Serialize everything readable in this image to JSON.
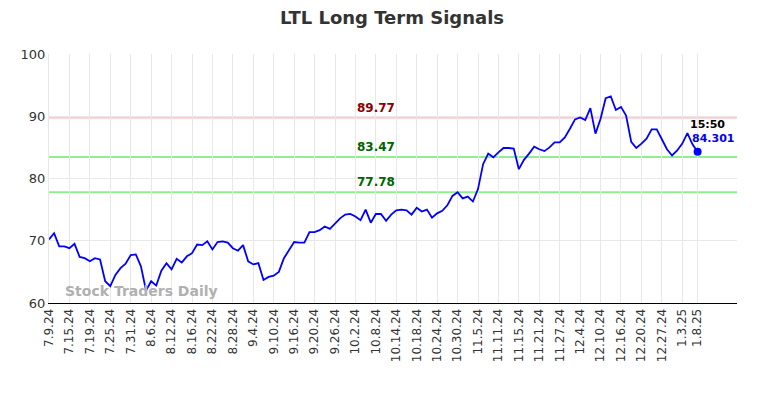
{
  "chart_data": {
    "type": "line",
    "title": "LTL Long Term Signals",
    "categories": [
      "7.9.24",
      null,
      null,
      null,
      "7.15.24",
      null,
      null,
      null,
      "7.19.24",
      null,
      null,
      null,
      "7.25.24",
      null,
      null,
      null,
      "7.31.24",
      null,
      null,
      null,
      "8.6.24",
      null,
      null,
      null,
      "8.12.24",
      null,
      null,
      null,
      "8.16.24",
      null,
      null,
      null,
      "8.22.24",
      null,
      null,
      null,
      "8.28.24",
      null,
      null,
      null,
      "9.4.24",
      null,
      null,
      null,
      "9.10.24",
      null,
      null,
      null,
      "9.16.24",
      null,
      null,
      null,
      "9.20.24",
      null,
      null,
      null,
      "9.26.24",
      null,
      null,
      null,
      "10.2.24",
      null,
      null,
      null,
      "10.8.24",
      null,
      null,
      null,
      "10.14.24",
      null,
      null,
      null,
      "10.18.24",
      null,
      null,
      null,
      "10.24.24",
      null,
      null,
      null,
      "10.30.24",
      null,
      null,
      null,
      "11.5.24",
      null,
      null,
      null,
      "11.11.24",
      null,
      null,
      null,
      "11.15.24",
      null,
      null,
      null,
      "11.21.24",
      null,
      null,
      null,
      "11.27.24",
      null,
      null,
      null,
      "12.4.24",
      null,
      null,
      null,
      "12.10.24",
      null,
      null,
      null,
      "12.16.24",
      null,
      null,
      null,
      "12.20.24",
      null,
      null,
      null,
      "12.27.24",
      null,
      null,
      null,
      "1.3.25",
      null,
      null,
      "1.8.25"
    ],
    "values": [
      70.2,
      71.2,
      69.1,
      69.1,
      68.8,
      69.5,
      67.4,
      67.2,
      66.7,
      67.2,
      67,
      63.5,
      62.7,
      64.5,
      65.6,
      66.3,
      67.7,
      67.8,
      65.9,
      62,
      63.5,
      62.8,
      65.2,
      66.4,
      65.4,
      67.1,
      66.5,
      67.5,
      68,
      69.4,
      69.3,
      69.9,
      68.6,
      69.8,
      69.9,
      69.7,
      68.8,
      68.4,
      69.3,
      66.7,
      66.2,
      66.4,
      63.7,
      64.2,
      64.4,
      65,
      67.2,
      68.4,
      69.8,
      69.7,
      69.7,
      71.4,
      71.4,
      71.7,
      72.3,
      71.9,
      72.7,
      73.6,
      74.2,
      74.3,
      73.9,
      73.3,
      75,
      72.9,
      74.3,
      74.3,
      73.2,
      74.2,
      74.9,
      75,
      74.9,
      74.2,
      75.3,
      74.7,
      75,
      73.7,
      74.4,
      74.8,
      75.7,
      77.2,
      77.8,
      76.8,
      77.1,
      76.3,
      78.3,
      82.3,
      84,
      83.4,
      84.2,
      84.9,
      84.9,
      84.8,
      81.5,
      83,
      84,
      85.1,
      84.7,
      84.4,
      85,
      85.8,
      85.8,
      86.6,
      88,
      89.5,
      89.8,
      89.4,
      91.3,
      87.2,
      89.6,
      92.9,
      93.2,
      91,
      91.5,
      90.1,
      85.9,
      84.9,
      85.6,
      86.4,
      87.9,
      87.9,
      86.3,
      84.7,
      83.7,
      84.5,
      85.6,
      87.3,
      85.5,
      84.301
    ],
    "color": "#0000ff",
    "ylim": [
      60,
      100
    ],
    "yticks": [
      60,
      70,
      80,
      90,
      100
    ],
    "grid": true,
    "reference_lines": [
      {
        "value": 89.77,
        "label": "89.77",
        "color": "#ffcccc",
        "label_color": "#8b0000"
      },
      {
        "value": 83.47,
        "label": "83.47",
        "color": "#90ee90",
        "label_color": "#006400"
      },
      {
        "value": 77.78,
        "label": "77.78",
        "color": "#90ee90",
        "label_color": "#006400"
      }
    ],
    "annotations": [
      {
        "text": "15:50",
        "color": "#000000"
      },
      {
        "text": "84.301",
        "value": 84.301,
        "color": "#0000ff"
      }
    ],
    "watermark": "Stock Traders Daily"
  }
}
